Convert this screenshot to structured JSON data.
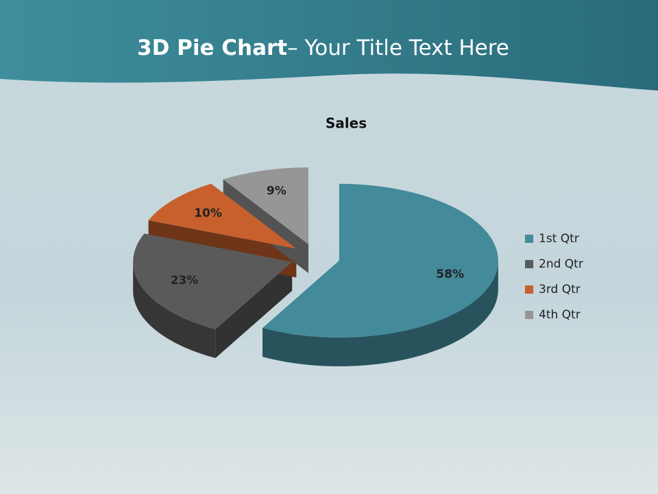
{
  "slide": {
    "title_bold": "3D Pie Chart",
    "title_rest": "– Your Title Text Here"
  },
  "chart_data": {
    "type": "pie",
    "title": "Sales",
    "categories": [
      "1st Qtr",
      "2nd Qtr",
      "3rd Qtr",
      "4th Qtr"
    ],
    "values": [
      58,
      23,
      10,
      9
    ],
    "value_labels": [
      "58%",
      "23%",
      "10%",
      "9%"
    ],
    "colors": [
      "#438a9a",
      "#5a5a5a",
      "#c8602e",
      "#969696"
    ],
    "legend": "right"
  }
}
